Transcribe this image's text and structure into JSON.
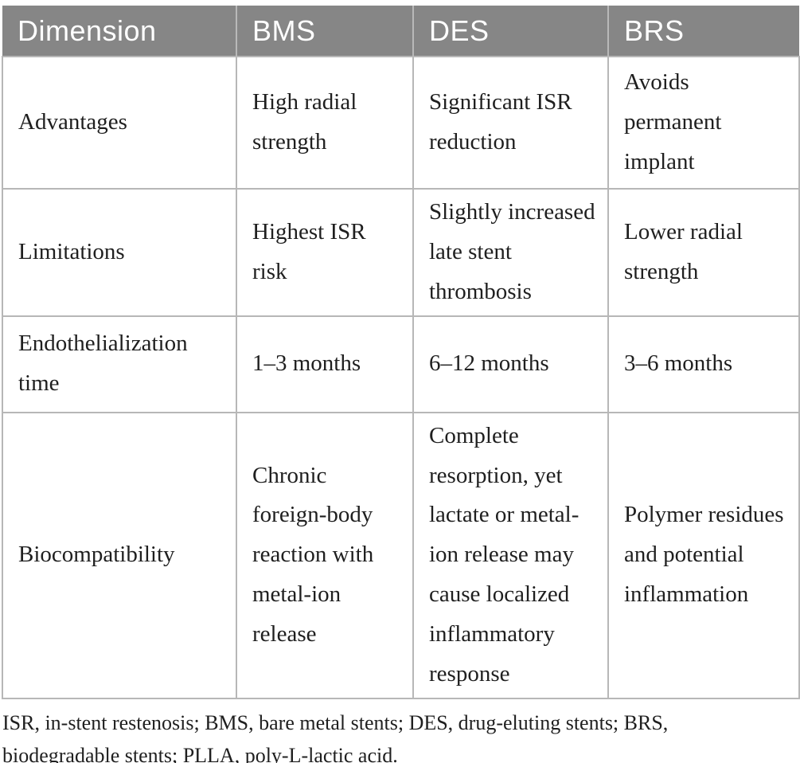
{
  "table": {
    "columns": [
      "Dimension",
      "BMS",
      "DES",
      "BRS"
    ],
    "rows": [
      {
        "label": "Advantages",
        "cells": [
          "High radial strength",
          "Significant ISR reduction",
          "Avoids permanent implant"
        ]
      },
      {
        "label": "Limitations",
        "cells": [
          "Highest ISR risk",
          "Slightly increased late stent thrombosis",
          "Lower radial strength"
        ]
      },
      {
        "label": "Endothelialization time",
        "cells": [
          "1–3 months",
          "6–12 months",
          "3–6 months"
        ]
      },
      {
        "label": "Biocompatibility",
        "cells": [
          "Chronic foreign-body reaction with metal-ion release",
          "Complete resorption, yet lactate or metal-ion release may cause localized inflammatory response",
          "Polymer residues and potential inflammation"
        ]
      }
    ]
  },
  "footnote": {
    "text": "ISR, in-stent restenosis; BMS, bare metal stents; DES, drug-eluting stents; BRS, biodegradable stents; PLLA, poly-L-lactic acid."
  },
  "colors": {
    "header_bg": "#868686",
    "header_text": "#ffffff",
    "header_divider": "#b9b9b9",
    "cell_border": "#b7b7b7",
    "body_text": "#1f1f1f",
    "page_bg": "#ffffff"
  }
}
